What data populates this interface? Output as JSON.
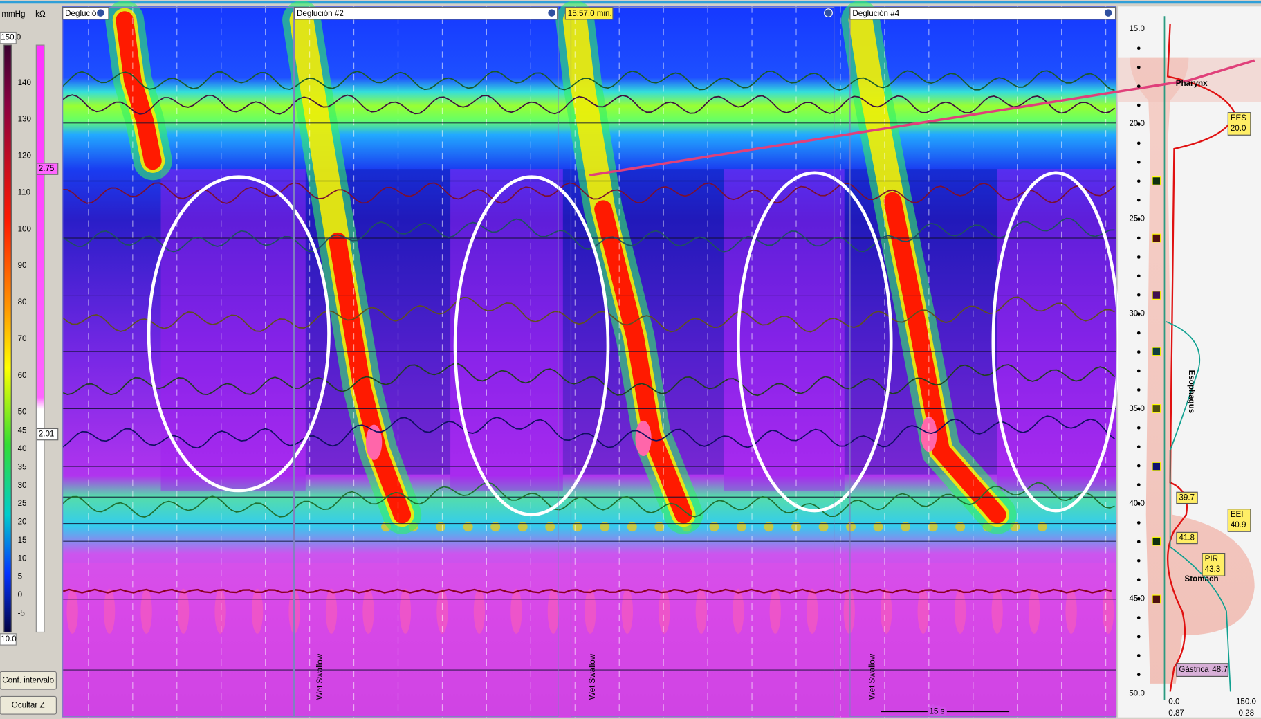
{
  "left_panel": {
    "units": [
      "mmHg",
      "kΩ"
    ],
    "top": "150.0",
    "scale": [
      "140",
      "130",
      "120",
      "110",
      "100",
      "90",
      "80",
      "70",
      "60",
      "50",
      "45",
      "40",
      "35",
      "30",
      "25",
      "20",
      "15",
      "10",
      "5",
      "0",
      "-5"
    ],
    "bottom": "10.0",
    "impedance": [
      "2.75",
      "2.01"
    ],
    "buttons": [
      "Conf. intervalo",
      "Ocultar Z"
    ]
  },
  "plot": {
    "headers": [
      "Deglución",
      "Deglución #2",
      "15:57.0 min.",
      "Deglución #4"
    ],
    "markers": [
      "Wet Swallow",
      "Wet Swallow",
      "Wet Swallow"
    ],
    "time_scale": "15 s"
  },
  "right_panel": {
    "depths": [
      "15.0",
      "20.0",
      "25.0",
      "30.0",
      "35.0",
      "40.0",
      "45.0",
      "50.0"
    ],
    "regions": [
      "Pharynx",
      "Esophagus",
      "Stomach"
    ],
    "labels": [
      {
        "name": "EES",
        "value": "20.0"
      },
      {
        "value": "39.7"
      },
      {
        "name": "EEI",
        "value": "40.9"
      },
      {
        "value": "41.8"
      },
      {
        "name": "PIR",
        "value": "43.3"
      },
      {
        "name": "Gástrica",
        "value": "48.7"
      }
    ],
    "axis": [
      "0.0",
      "0.87",
      "150.0",
      "0.28"
    ]
  }
}
